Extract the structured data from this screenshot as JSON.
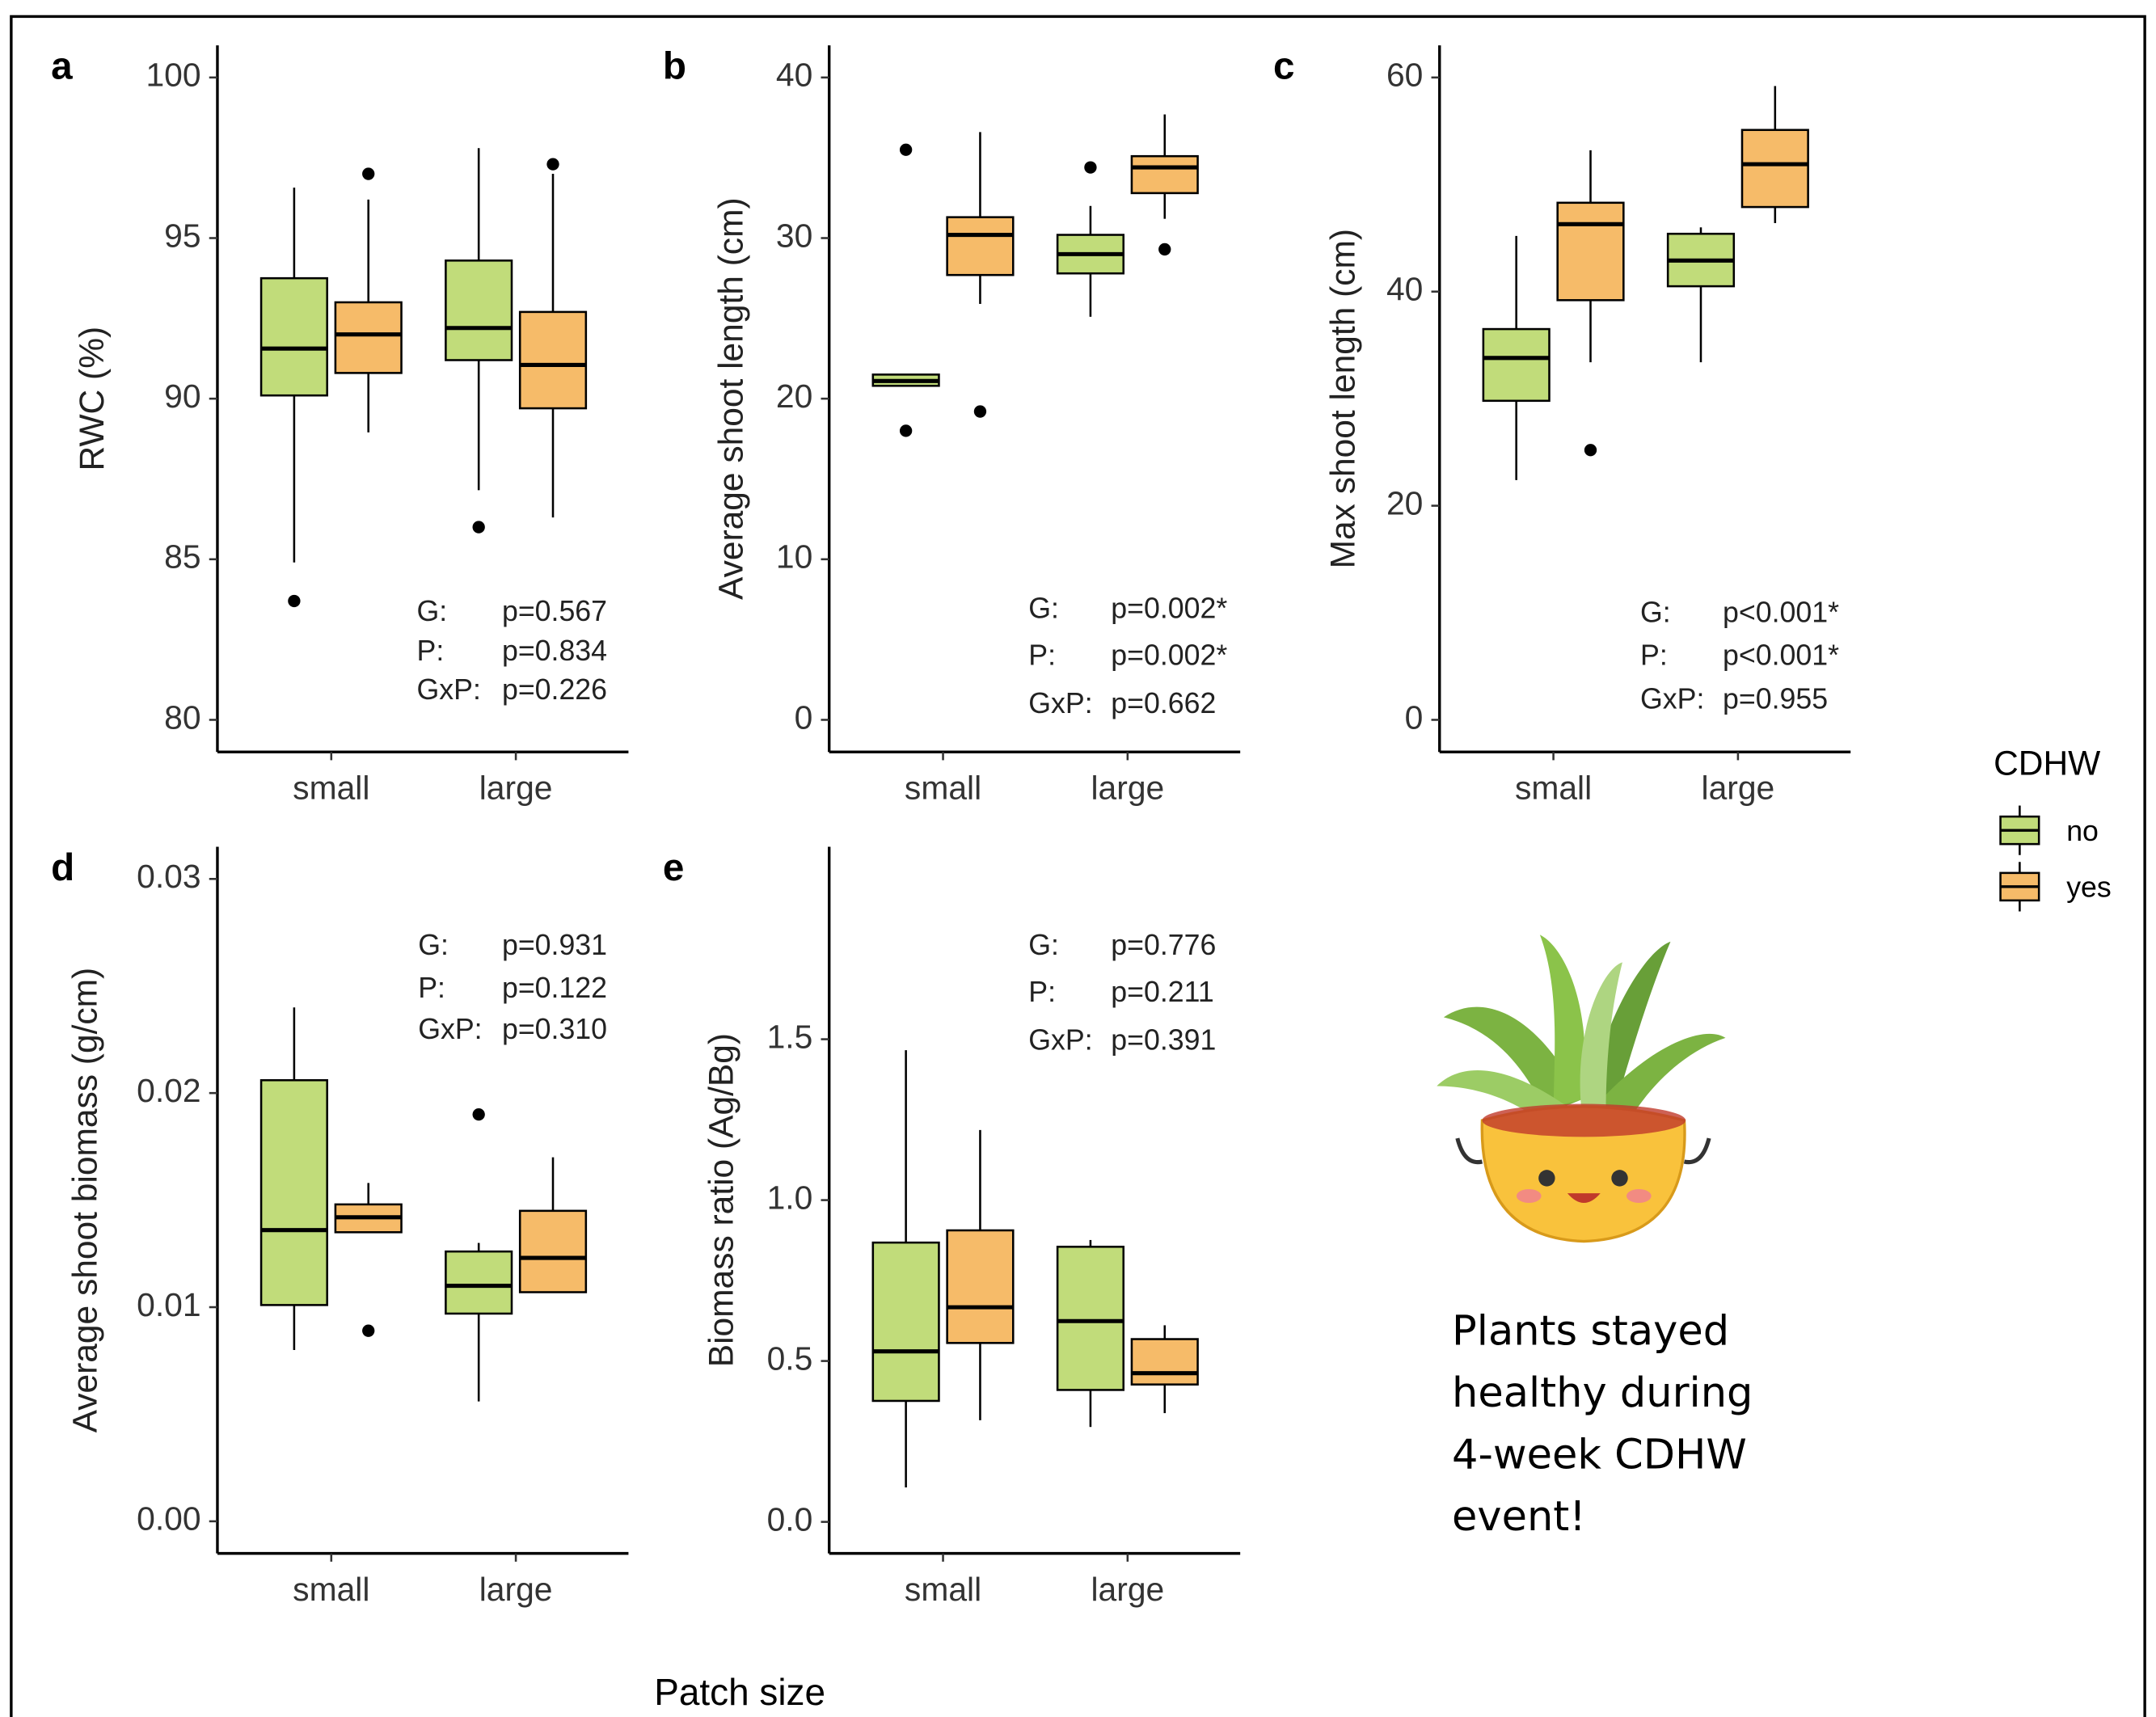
{
  "x_label": "Patch size",
  "legend_title": "CDHW",
  "caption": [
    "Plants stayed",
    "healthy during",
    "4-week CDHW",
    "event!"
  ],
  "chart_data": [
    {
      "type": "box",
      "panel": "a",
      "y_label": "RWC (%)",
      "categories": [
        "small",
        "large"
      ],
      "ylim": [
        79,
        101
      ],
      "yticks": [
        80,
        85,
        90,
        95,
        100
      ],
      "stats": [
        {
          "label": "G:",
          "value": "p=0.567"
        },
        {
          "label": "P:",
          "value": "p=0.834"
        },
        {
          "label": "GxP:",
          "value": "p=0.226"
        }
      ],
      "series": [
        {
          "name": "no",
          "color": "#c1dc7a",
          "boxes": [
            {
              "whislo": 84.9,
              "q1": 90.1,
              "med": 91.56,
              "q3": 93.75,
              "whishi": 96.57,
              "fliers": [
                83.7
              ]
            },
            {
              "whislo": 87.15,
              "q1": 91.2,
              "med": 92.2,
              "q3": 94.3,
              "whishi": 97.8,
              "fliers": [
                86.0
              ]
            }
          ]
        },
        {
          "name": "yes",
          "color": "#f6bb69",
          "boxes": [
            {
              "whislo": 88.95,
              "q1": 90.8,
              "med": 92.0,
              "q3": 93.0,
              "whishi": 96.2,
              "fliers": [
                97.0
              ]
            },
            {
              "whislo": 86.3,
              "q1": 89.7,
              "med": 91.05,
              "q3": 92.7,
              "whishi": 97.0,
              "fliers": [
                97.3
              ]
            }
          ]
        }
      ]
    },
    {
      "type": "box",
      "panel": "b",
      "y_label": "Average shoot length (cm)",
      "categories": [
        "small",
        "large"
      ],
      "ylim": [
        -2,
        42
      ],
      "yticks": [
        0,
        10,
        20,
        30,
        40
      ],
      "stats": [
        {
          "label": "G:",
          "value": "p=0.002*"
        },
        {
          "label": "P:",
          "value": "p=0.002*"
        },
        {
          "label": "GxP:",
          "value": "p=0.662"
        }
      ],
      "series": [
        {
          "name": "no",
          "color": "#c1dc7a",
          "boxes": [
            {
              "whislo": 20.8,
              "q1": 20.8,
              "med": 21.1,
              "q3": 21.5,
              "whishi": 21.5,
              "fliers": [
                35.5,
                18.0
              ]
            },
            {
              "whislo": 25.1,
              "q1": 27.8,
              "med": 29.0,
              "q3": 30.2,
              "whishi": 32.0,
              "fliers": [
                34.4
              ]
            }
          ]
        },
        {
          "name": "yes",
          "color": "#f6bb69",
          "boxes": [
            {
              "whislo": 25.9,
              "q1": 27.7,
              "med": 30.2,
              "q3": 31.3,
              "whishi": 36.6,
              "fliers": [
                19.2
              ]
            },
            {
              "whislo": 31.2,
              "q1": 32.8,
              "med": 34.4,
              "q3": 35.1,
              "whishi": 37.7,
              "fliers": [
                29.3
              ]
            }
          ]
        }
      ]
    },
    {
      "type": "box",
      "panel": "c",
      "y_label": "Max shoot length (cm)",
      "categories": [
        "small",
        "large"
      ],
      "ylim": [
        -3,
        63
      ],
      "yticks": [
        0,
        20,
        40,
        60
      ],
      "stats": [
        {
          "label": "G:",
          "value": "p<0.001*"
        },
        {
          "label": "P:",
          "value": "p<0.001*"
        },
        {
          "label": "GxP:",
          "value": "p=0.955"
        }
      ],
      "series": [
        {
          "name": "no",
          "color": "#c1dc7a",
          "boxes": [
            {
              "whislo": 22.4,
              "q1": 29.8,
              "med": 33.8,
              "q3": 36.5,
              "whishi": 45.2,
              "fliers": []
            },
            {
              "whislo": 33.4,
              "q1": 40.5,
              "med": 42.9,
              "q3": 45.4,
              "whishi": 46.0,
              "fliers": []
            }
          ]
        },
        {
          "name": "yes",
          "color": "#f6bb69",
          "boxes": [
            {
              "whislo": 33.4,
              "q1": 39.2,
              "med": 46.3,
              "q3": 48.3,
              "whishi": 53.2,
              "fliers": [
                25.2
              ]
            },
            {
              "whislo": 46.4,
              "q1": 47.9,
              "med": 51.9,
              "q3": 55.1,
              "whishi": 59.2,
              "fliers": []
            }
          ]
        }
      ]
    },
    {
      "type": "box",
      "panel": "d",
      "y_label": "Average shoot biomass (g/cm)",
      "categories": [
        "small",
        "large"
      ],
      "ylim": [
        -0.0015,
        0.0315
      ],
      "yticks": [
        {
          "value": 0,
          "label": "0.00"
        },
        {
          "value": 0.01,
          "label": "0.01"
        },
        {
          "value": 0.02,
          "label": "0.02"
        },
        {
          "value": 0.03,
          "label": "0.03"
        }
      ],
      "stats": [
        {
          "label": "G:",
          "value": "p=0.931"
        },
        {
          "label": "P:",
          "value": "p=0.122"
        },
        {
          "label": "GxP:",
          "value": "p=0.310"
        }
      ],
      "series": [
        {
          "name": "no",
          "color": "#c1dc7a",
          "boxes": [
            {
              "whislo": 0.008,
              "q1": 0.0101,
              "med": 0.0136,
              "q3": 0.0206,
              "whishi": 0.024,
              "fliers": []
            },
            {
              "whislo": 0.0056,
              "q1": 0.0097,
              "med": 0.011,
              "q3": 0.0126,
              "whishi": 0.013,
              "fliers": [
                0.019
              ]
            }
          ]
        },
        {
          "name": "yes",
          "color": "#f6bb69",
          "boxes": [
            {
              "whislo": 0.0135,
              "q1": 0.0135,
              "med": 0.0142,
              "q3": 0.0148,
              "whishi": 0.0158,
              "fliers": [
                0.0089
              ]
            },
            {
              "whislo": 0.0107,
              "q1": 0.0107,
              "med": 0.0123,
              "q3": 0.0145,
              "whishi": 0.017,
              "fliers": []
            }
          ]
        }
      ]
    },
    {
      "type": "box",
      "panel": "e",
      "y_label": "Biomass ratio (Ag/Bg)",
      "categories": [
        "small",
        "large"
      ],
      "ylim": [
        -0.098,
        2.098
      ],
      "yticks": [
        {
          "value": 0,
          "label": "0.0"
        },
        0.5,
        {
          "value": 1,
          "label": "1.0"
        },
        1.5
      ],
      "stats": [
        {
          "label": "G:",
          "value": "p=0.776"
        },
        {
          "label": "P:",
          "value": "p=0.211"
        },
        {
          "label": "GxP:",
          "value": "p=0.391"
        }
      ],
      "series": [
        {
          "name": "no",
          "color": "#c1dc7a",
          "boxes": [
            {
              "whislo": 0.107,
              "q1": 0.376,
              "med": 0.53,
              "q3": 0.868,
              "whishi": 1.466,
              "fliers": []
            },
            {
              "whislo": 0.295,
              "q1": 0.41,
              "med": 0.624,
              "q3": 0.855,
              "whishi": 0.876,
              "fliers": []
            }
          ]
        },
        {
          "name": "yes",
          "color": "#f6bb69",
          "boxes": [
            {
              "whislo": 0.316,
              "q1": 0.556,
              "med": 0.667,
              "q3": 0.906,
              "whishi": 1.218,
              "fliers": []
            },
            {
              "whislo": 0.338,
              "q1": 0.427,
              "med": 0.462,
              "q3": 0.568,
              "whishi": 0.611,
              "fliers": []
            }
          ]
        }
      ]
    }
  ]
}
